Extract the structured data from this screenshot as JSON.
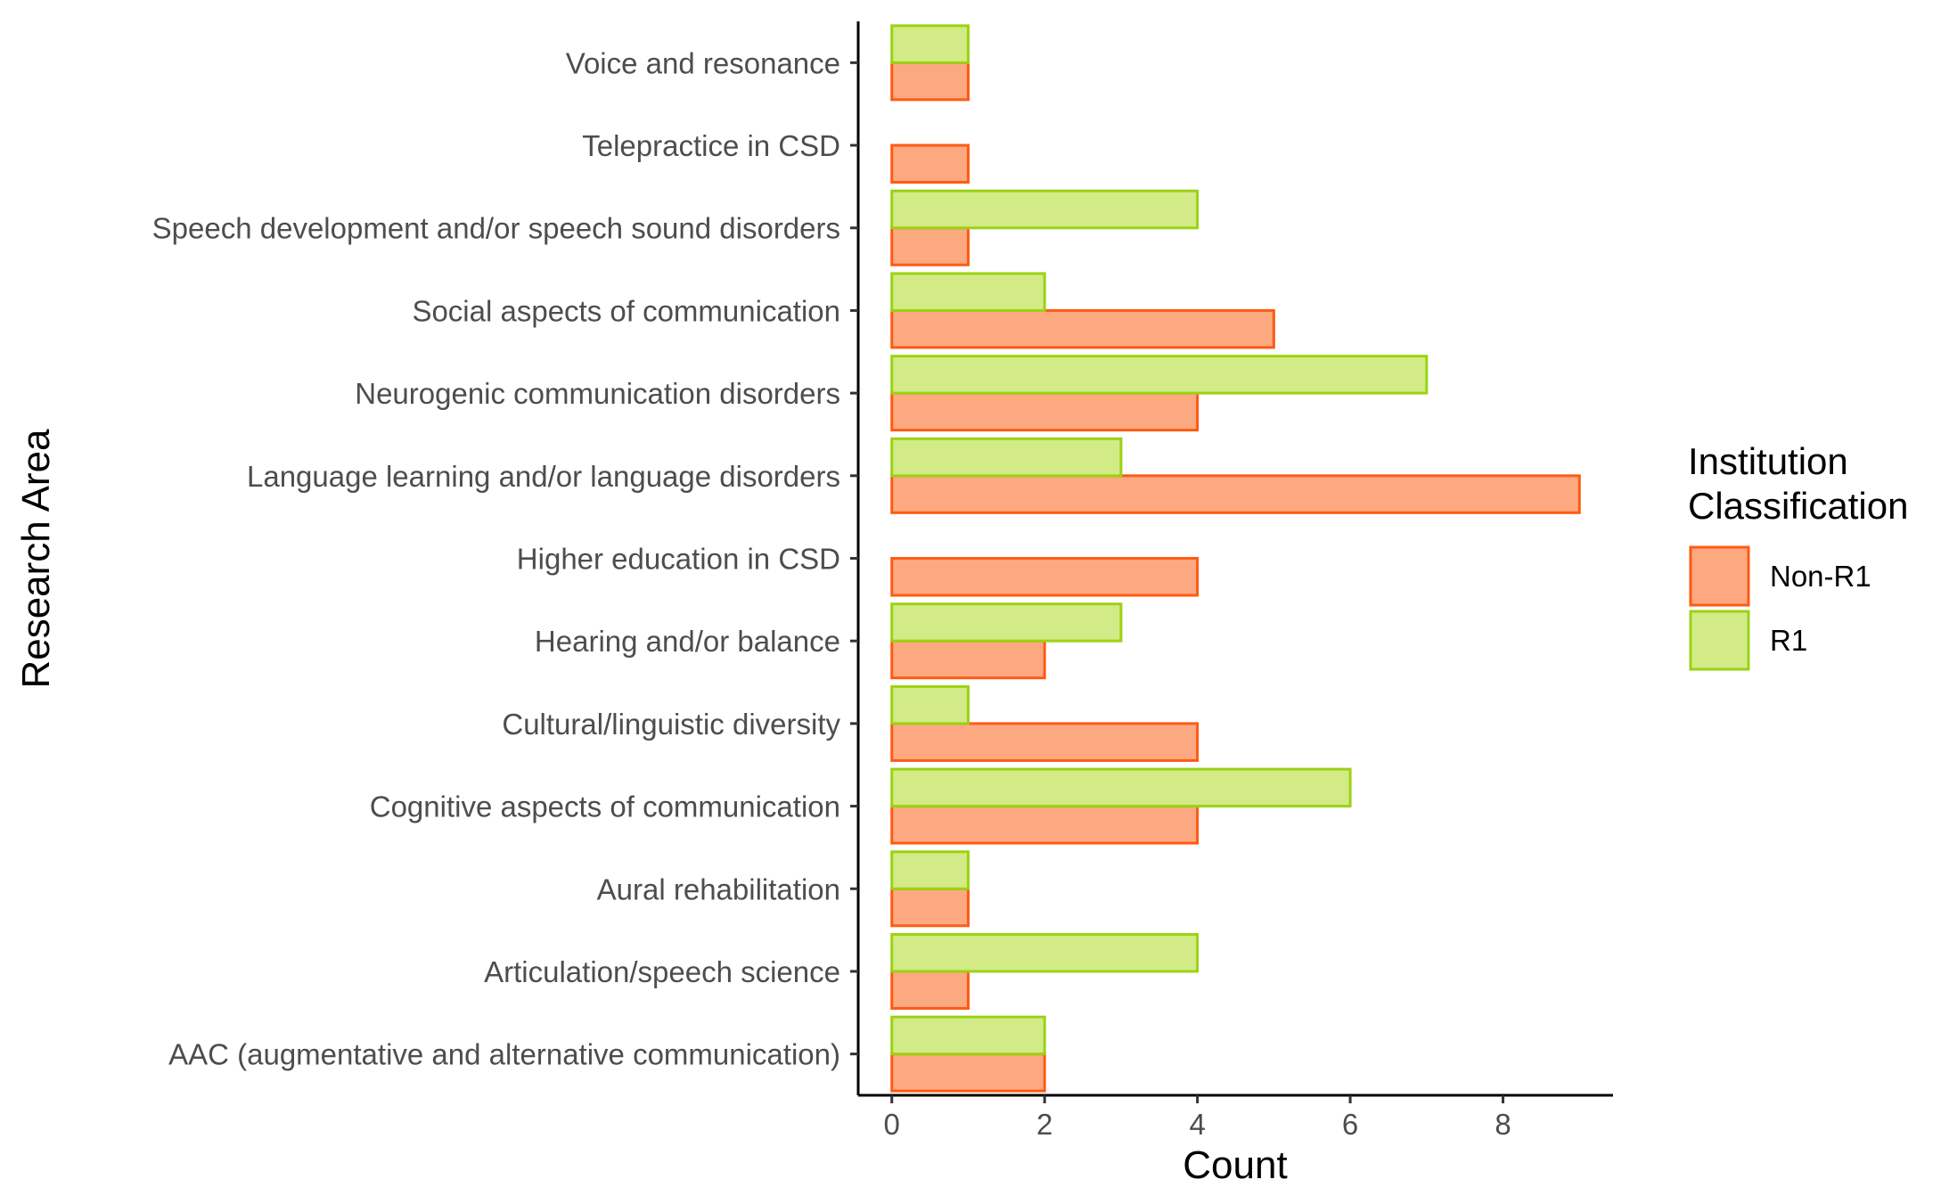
{
  "chart_data": {
    "type": "bar",
    "orientation": "horizontal",
    "bar_layout": "dodged",
    "xlabel": "Count",
    "ylabel": "Research Area",
    "xlim": [
      -0.44,
      9.44
    ],
    "xticks": [
      0,
      2,
      4,
      6,
      8
    ],
    "grid": false,
    "categories": [
      "AAC (augmentative and alternative communication)",
      "Articulation/speech science",
      "Aural rehabilitation",
      "Cognitive aspects of communication",
      "Cultural/linguistic diversity",
      "Hearing and/or balance",
      "Higher education in CSD",
      "Language learning and/or language disorders",
      "Neurogenic communication disorders",
      "Social aspects of communication",
      "Speech development and/or speech sound disorders",
      "Telepractice in CSD",
      "Voice and resonance"
    ],
    "series": [
      {
        "name": "Non-R1",
        "fill": "#fca981",
        "stroke": "#ff5a14",
        "values": [
          2,
          1,
          1,
          4,
          4,
          2,
          4,
          9,
          4,
          5,
          1,
          1,
          1
        ]
      },
      {
        "name": "R1",
        "fill": "#d2eb87",
        "stroke": "#9bd214",
        "values": [
          2,
          4,
          1,
          6,
          1,
          3,
          0,
          3,
          7,
          2,
          4,
          0,
          1
        ]
      }
    ],
    "legend": {
      "title": "Institution\nClassification",
      "position": "right"
    }
  }
}
